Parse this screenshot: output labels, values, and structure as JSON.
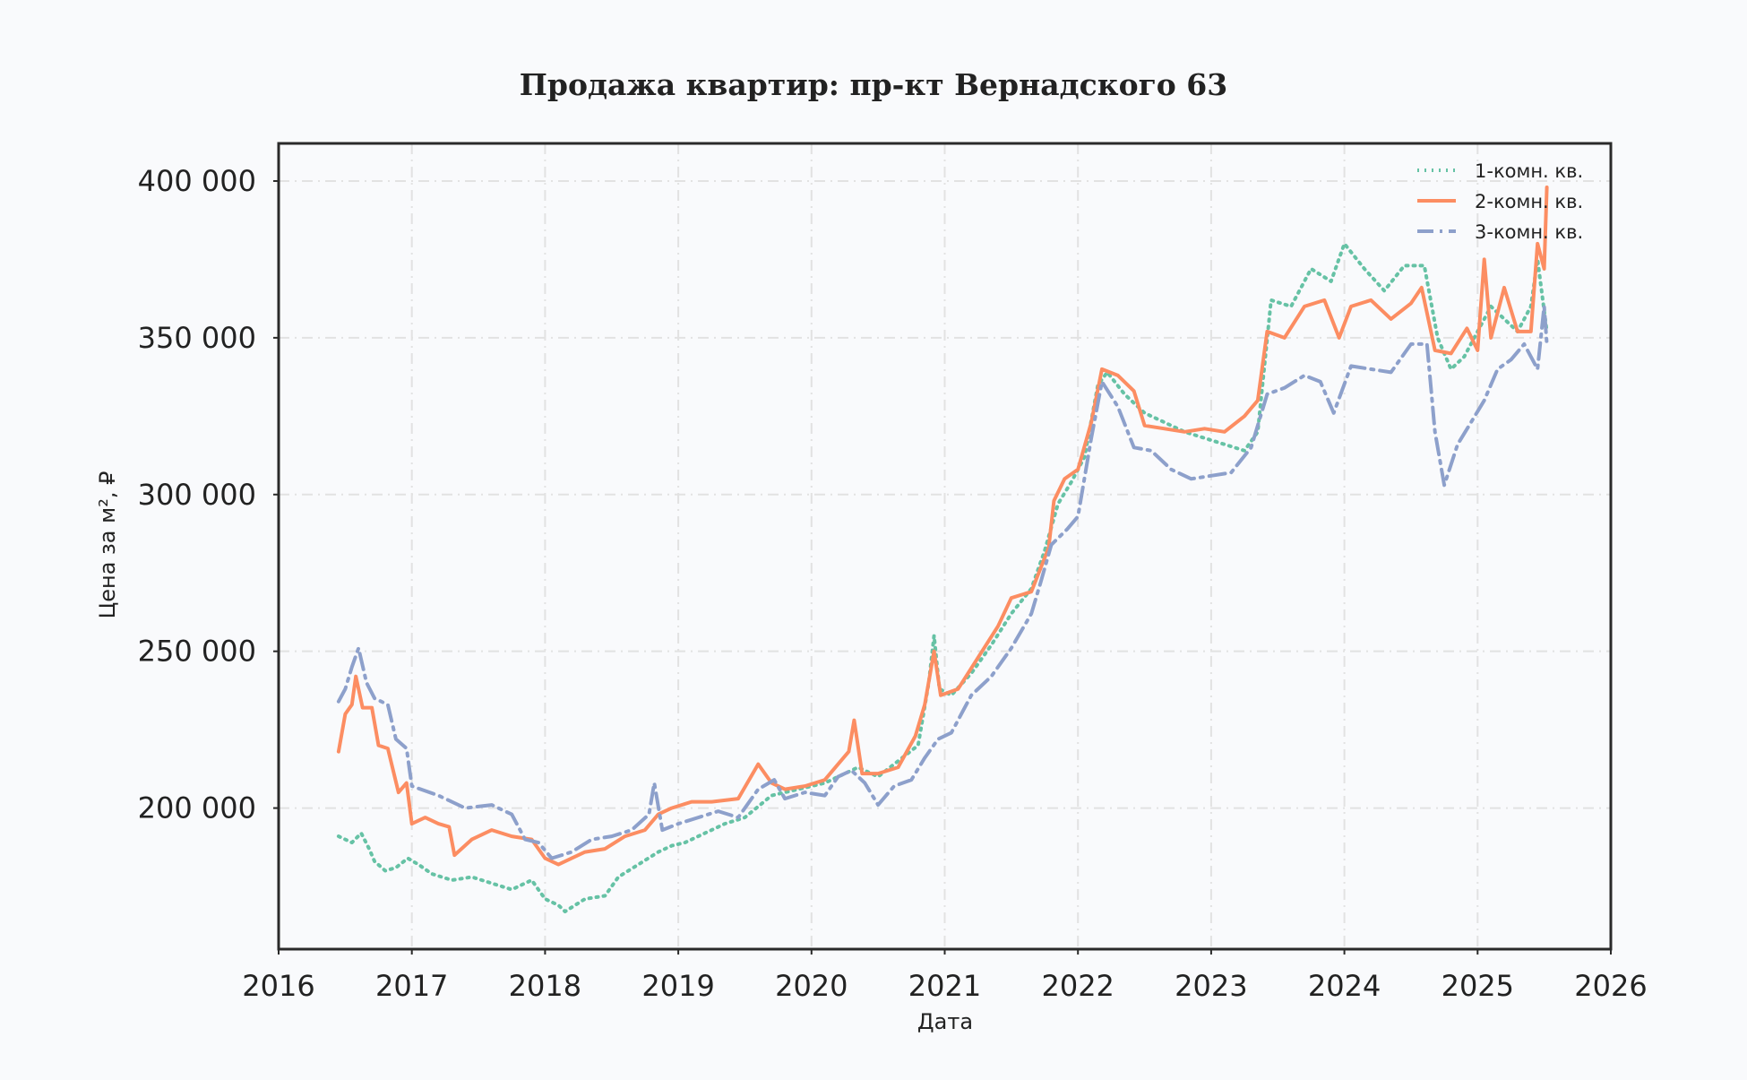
{
  "chart_data": {
    "type": "line",
    "title": "Продажа квартир: пр-кт Вернадского 63",
    "xlabel": "Дата",
    "ylabel": "Цена за м², ₽",
    "xlim": [
      2016.0,
      2026.0
    ],
    "ylim": [
      155000,
      412000
    ],
    "x_ticks": [
      2016,
      2017,
      2018,
      2019,
      2020,
      2021,
      2022,
      2023,
      2024,
      2025,
      2026
    ],
    "x_tick_labels": [
      "2016",
      "2017",
      "2018",
      "2019",
      "2020",
      "2021",
      "2022",
      "2023",
      "2024",
      "2025",
      "2026"
    ],
    "y_ticks": [
      200000,
      250000,
      300000,
      350000,
      400000
    ],
    "y_tick_labels": [
      "200 000",
      "250 000",
      "300 000",
      "350 000",
      "400 000"
    ],
    "grid": true,
    "legend_position": "top-right",
    "series": [
      {
        "name": "1-комн. кв.",
        "color": "#66c2a5",
        "style": "dotted",
        "points": [
          [
            2016.45,
            191000
          ],
          [
            2016.55,
            189000
          ],
          [
            2016.62,
            192000
          ],
          [
            2016.68,
            187000
          ],
          [
            2016.72,
            183000
          ],
          [
            2016.8,
            180000
          ],
          [
            2016.88,
            181000
          ],
          [
            2016.97,
            184000
          ],
          [
            2017.05,
            182000
          ],
          [
            2017.15,
            179000
          ],
          [
            2017.3,
            177000
          ],
          [
            2017.45,
            178000
          ],
          [
            2017.6,
            176000
          ],
          [
            2017.75,
            174000
          ],
          [
            2017.9,
            177000
          ],
          [
            2018.0,
            171000
          ],
          [
            2018.1,
            169000
          ],
          [
            2018.15,
            167000
          ],
          [
            2018.3,
            171000
          ],
          [
            2018.45,
            172000
          ],
          [
            2018.55,
            178000
          ],
          [
            2018.7,
            182000
          ],
          [
            2018.85,
            186000
          ],
          [
            2018.95,
            188000
          ],
          [
            2019.05,
            189000
          ],
          [
            2019.2,
            192000
          ],
          [
            2019.35,
            195000
          ],
          [
            2019.5,
            197000
          ],
          [
            2019.7,
            204000
          ],
          [
            2019.9,
            206000
          ],
          [
            2020.1,
            208000
          ],
          [
            2020.25,
            211000
          ],
          [
            2020.35,
            213000
          ],
          [
            2020.5,
            210000
          ],
          [
            2020.65,
            215000
          ],
          [
            2020.8,
            220000
          ],
          [
            2020.88,
            240000
          ],
          [
            2020.92,
            255000
          ],
          [
            2020.96,
            238000
          ],
          [
            2021.05,
            236000
          ],
          [
            2021.2,
            243000
          ],
          [
            2021.35,
            252000
          ],
          [
            2021.5,
            262000
          ],
          [
            2021.65,
            270000
          ],
          [
            2021.75,
            282000
          ],
          [
            2021.85,
            297000
          ],
          [
            2021.95,
            304000
          ],
          [
            2022.05,
            312000
          ],
          [
            2022.15,
            335000
          ],
          [
            2022.22,
            339000
          ],
          [
            2022.35,
            332000
          ],
          [
            2022.5,
            326000
          ],
          [
            2022.65,
            323000
          ],
          [
            2022.8,
            320000
          ],
          [
            2022.95,
            318000
          ],
          [
            2023.1,
            316000
          ],
          [
            2023.25,
            314000
          ],
          [
            2023.35,
            320000
          ],
          [
            2023.45,
            362000
          ],
          [
            2023.6,
            360000
          ],
          [
            2023.75,
            372000
          ],
          [
            2023.9,
            368000
          ],
          [
            2024.0,
            380000
          ],
          [
            2024.15,
            372000
          ],
          [
            2024.3,
            365000
          ],
          [
            2024.45,
            373000
          ],
          [
            2024.6,
            373000
          ],
          [
            2024.7,
            350000
          ],
          [
            2024.8,
            340000
          ],
          [
            2024.9,
            344000
          ],
          [
            2025.0,
            352000
          ],
          [
            2025.1,
            360000
          ],
          [
            2025.2,
            356000
          ],
          [
            2025.3,
            352000
          ],
          [
            2025.4,
            360000
          ],
          [
            2025.45,
            375000
          ],
          [
            2025.52,
            352000
          ]
        ]
      },
      {
        "name": "2-комн. кв.",
        "color": "#fc8d62",
        "style": "solid",
        "points": [
          [
            2016.45,
            218000
          ],
          [
            2016.5,
            230000
          ],
          [
            2016.55,
            233000
          ],
          [
            2016.58,
            242000
          ],
          [
            2016.63,
            232000
          ],
          [
            2016.7,
            232000
          ],
          [
            2016.75,
            220000
          ],
          [
            2016.82,
            219000
          ],
          [
            2016.9,
            205000
          ],
          [
            2016.96,
            208000
          ],
          [
            2017.0,
            195000
          ],
          [
            2017.1,
            197000
          ],
          [
            2017.2,
            195000
          ],
          [
            2017.28,
            194000
          ],
          [
            2017.32,
            185000
          ],
          [
            2017.45,
            190000
          ],
          [
            2017.6,
            193000
          ],
          [
            2017.75,
            191000
          ],
          [
            2017.9,
            190000
          ],
          [
            2018.0,
            184000
          ],
          [
            2018.1,
            182000
          ],
          [
            2018.2,
            184000
          ],
          [
            2018.3,
            186000
          ],
          [
            2018.45,
            187000
          ],
          [
            2018.6,
            191000
          ],
          [
            2018.75,
            193000
          ],
          [
            2018.85,
            198000
          ],
          [
            2018.95,
            200000
          ],
          [
            2019.1,
            202000
          ],
          [
            2019.25,
            202000
          ],
          [
            2019.45,
            203000
          ],
          [
            2019.6,
            214000
          ],
          [
            2019.7,
            208000
          ],
          [
            2019.8,
            206000
          ],
          [
            2019.95,
            207000
          ],
          [
            2020.1,
            209000
          ],
          [
            2020.2,
            214000
          ],
          [
            2020.28,
            218000
          ],
          [
            2020.32,
            228000
          ],
          [
            2020.38,
            211000
          ],
          [
            2020.5,
            211000
          ],
          [
            2020.65,
            213000
          ],
          [
            2020.78,
            223000
          ],
          [
            2020.85,
            233000
          ],
          [
            2020.92,
            250000
          ],
          [
            2020.97,
            236000
          ],
          [
            2021.1,
            238000
          ],
          [
            2021.25,
            248000
          ],
          [
            2021.4,
            258000
          ],
          [
            2021.5,
            267000
          ],
          [
            2021.65,
            269000
          ],
          [
            2021.78,
            283000
          ],
          [
            2021.82,
            298000
          ],
          [
            2021.9,
            305000
          ],
          [
            2022.0,
            308000
          ],
          [
            2022.1,
            323000
          ],
          [
            2022.18,
            340000
          ],
          [
            2022.3,
            338000
          ],
          [
            2022.42,
            333000
          ],
          [
            2022.5,
            322000
          ],
          [
            2022.65,
            321000
          ],
          [
            2022.8,
            320000
          ],
          [
            2022.95,
            321000
          ],
          [
            2023.1,
            320000
          ],
          [
            2023.25,
            325000
          ],
          [
            2023.35,
            330000
          ],
          [
            2023.42,
            352000
          ],
          [
            2023.55,
            350000
          ],
          [
            2023.7,
            360000
          ],
          [
            2023.85,
            362000
          ],
          [
            2023.96,
            350000
          ],
          [
            2024.05,
            360000
          ],
          [
            2024.2,
            362000
          ],
          [
            2024.35,
            356000
          ],
          [
            2024.5,
            361000
          ],
          [
            2024.58,
            366000
          ],
          [
            2024.68,
            346000
          ],
          [
            2024.8,
            345000
          ],
          [
            2024.92,
            353000
          ],
          [
            2025.0,
            346000
          ],
          [
            2025.05,
            375000
          ],
          [
            2025.1,
            350000
          ],
          [
            2025.2,
            366000
          ],
          [
            2025.3,
            352000
          ],
          [
            2025.4,
            352000
          ],
          [
            2025.45,
            380000
          ],
          [
            2025.5,
            372000
          ],
          [
            2025.52,
            398000
          ]
        ]
      },
      {
        "name": "3-комн. кв.",
        "color": "#8da0cb",
        "style": "dashdot",
        "points": [
          [
            2016.45,
            234000
          ],
          [
            2016.5,
            238000
          ],
          [
            2016.55,
            245000
          ],
          [
            2016.6,
            251000
          ],
          [
            2016.66,
            240000
          ],
          [
            2016.72,
            235000
          ],
          [
            2016.82,
            233000
          ],
          [
            2016.88,
            222000
          ],
          [
            2016.96,
            219000
          ],
          [
            2017.0,
            207000
          ],
          [
            2017.2,
            204000
          ],
          [
            2017.4,
            200000
          ],
          [
            2017.6,
            201000
          ],
          [
            2017.75,
            198000
          ],
          [
            2017.85,
            190000
          ],
          [
            2017.95,
            189000
          ],
          [
            2018.05,
            184000
          ],
          [
            2018.2,
            186000
          ],
          [
            2018.35,
            190000
          ],
          [
            2018.5,
            191000
          ],
          [
            2018.65,
            193000
          ],
          [
            2018.78,
            198000
          ],
          [
            2018.82,
            208000
          ],
          [
            2018.88,
            193000
          ],
          [
            2019.0,
            195000
          ],
          [
            2019.15,
            197000
          ],
          [
            2019.3,
            199000
          ],
          [
            2019.45,
            197000
          ],
          [
            2019.6,
            206000
          ],
          [
            2019.72,
            209000
          ],
          [
            2019.8,
            203000
          ],
          [
            2019.95,
            205000
          ],
          [
            2020.1,
            204000
          ],
          [
            2020.2,
            210000
          ],
          [
            2020.3,
            212000
          ],
          [
            2020.4,
            208000
          ],
          [
            2020.5,
            201000
          ],
          [
            2020.62,
            207000
          ],
          [
            2020.75,
            209000
          ],
          [
            2020.85,
            216000
          ],
          [
            2020.95,
            222000
          ],
          [
            2021.05,
            224000
          ],
          [
            2021.2,
            236000
          ],
          [
            2021.35,
            242000
          ],
          [
            2021.5,
            251000
          ],
          [
            2021.65,
            262000
          ],
          [
            2021.72,
            272000
          ],
          [
            2021.8,
            284000
          ],
          [
            2021.92,
            289000
          ],
          [
            2022.0,
            293000
          ],
          [
            2022.1,
            318000
          ],
          [
            2022.18,
            336000
          ],
          [
            2022.3,
            328000
          ],
          [
            2022.42,
            315000
          ],
          [
            2022.55,
            314000
          ],
          [
            2022.7,
            308000
          ],
          [
            2022.85,
            305000
          ],
          [
            2023.0,
            306000
          ],
          [
            2023.15,
            307000
          ],
          [
            2023.3,
            315000
          ],
          [
            2023.42,
            332000
          ],
          [
            2023.55,
            334000
          ],
          [
            2023.7,
            338000
          ],
          [
            2023.82,
            336000
          ],
          [
            2023.92,
            326000
          ],
          [
            2024.05,
            341000
          ],
          [
            2024.2,
            340000
          ],
          [
            2024.35,
            339000
          ],
          [
            2024.5,
            348000
          ],
          [
            2024.62,
            348000
          ],
          [
            2024.68,
            320000
          ],
          [
            2024.75,
            303000
          ],
          [
            2024.85,
            316000
          ],
          [
            2024.95,
            323000
          ],
          [
            2025.05,
            330000
          ],
          [
            2025.15,
            340000
          ],
          [
            2025.25,
            343000
          ],
          [
            2025.35,
            348000
          ],
          [
            2025.45,
            340000
          ],
          [
            2025.5,
            360000
          ],
          [
            2025.52,
            348000
          ]
        ]
      }
    ]
  }
}
